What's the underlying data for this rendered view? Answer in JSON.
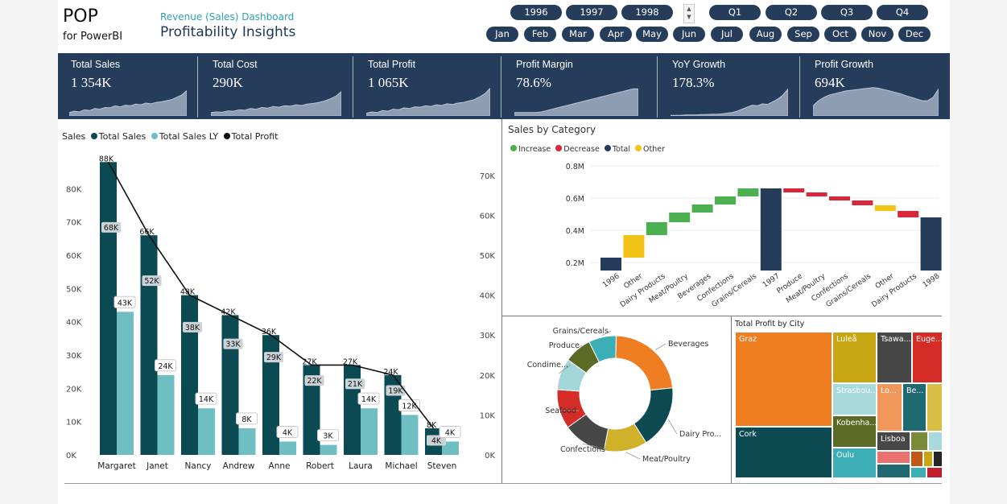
{
  "header": {
    "logo": "POP",
    "logo_sub": "for PowerBI",
    "subtitle": "Revenue (Sales) Dashboard",
    "title": "Profitability Insights"
  },
  "filters": {
    "years": [
      "1996",
      "1997",
      "1998"
    ],
    "quarters": [
      "Q1",
      "Q2",
      "Q3",
      "Q4"
    ],
    "months": [
      "Jan",
      "Feb",
      "Mar",
      "Apr",
      "May",
      "Jun",
      "Jul",
      "Aug",
      "Sep",
      "Oct",
      "Nov",
      "Dec"
    ],
    "spinner_icon": "up-down-arrows-icon"
  },
  "kpis": [
    {
      "label": "Total Sales",
      "value": "1 354K",
      "trend": [
        0.1,
        0.14,
        0.12,
        0.18,
        0.16,
        0.22,
        0.2,
        0.25,
        0.24,
        0.3,
        0.27,
        0.32,
        0.3,
        0.35,
        0.33,
        0.38,
        0.36,
        0.4,
        0.42,
        0.45,
        0.48,
        0.55,
        0.62,
        0.75
      ]
    },
    {
      "label": "Total Cost",
      "value": "290K",
      "trend": [
        0.1,
        0.12,
        0.11,
        0.15,
        0.14,
        0.18,
        0.17,
        0.22,
        0.2,
        0.25,
        0.23,
        0.28,
        0.26,
        0.3,
        0.29,
        0.33,
        0.31,
        0.35,
        0.37,
        0.4,
        0.44,
        0.5,
        0.58,
        0.72
      ]
    },
    {
      "label": "Total Profit",
      "value": "1 065K",
      "trend": [
        0.08,
        0.12,
        0.1,
        0.16,
        0.14,
        0.2,
        0.18,
        0.24,
        0.22,
        0.27,
        0.26,
        0.3,
        0.28,
        0.33,
        0.31,
        0.36,
        0.34,
        0.38,
        0.4,
        0.44,
        0.48,
        0.56,
        0.66,
        0.82
      ]
    },
    {
      "label": "Profit Margin",
      "value": "78.6%",
      "trend": [
        0.1,
        0.1,
        0.1,
        0.1,
        0.1,
        0.12,
        0.16,
        0.2,
        0.24,
        0.28,
        0.32,
        0.36,
        0.4,
        0.44,
        0.48,
        0.52,
        0.56,
        0.6,
        0.64,
        0.68,
        0.72,
        0.76,
        0.8,
        0.8
      ]
    },
    {
      "label": "YoY Growth",
      "value": "178.3%",
      "trend": [
        0.02,
        0.02,
        0.02,
        0.03,
        0.03,
        0.03,
        0.04,
        0.04,
        0.05,
        0.05,
        0.06,
        0.08,
        0.1,
        0.14,
        0.2,
        0.26,
        0.32,
        0.3,
        0.36,
        0.34,
        0.42,
        0.5,
        0.62,
        0.8
      ]
    },
    {
      "label": "Profit Growth",
      "value": "694K",
      "trend": [
        0.3,
        0.45,
        0.55,
        0.62,
        0.66,
        0.7,
        0.74,
        0.76,
        0.78,
        0.8,
        0.82,
        0.84,
        0.82,
        0.78,
        0.74,
        0.7,
        0.66,
        0.6,
        0.55,
        0.5,
        0.45,
        0.45,
        0.55,
        0.8
      ]
    }
  ],
  "sales_legend": {
    "title": "Sales",
    "items": [
      {
        "name": "Total Sales",
        "color": "#0c4a53"
      },
      {
        "name": "Total Sales LY",
        "color": "#6fbfc2"
      },
      {
        "name": "Total Profit",
        "color": "#111111"
      }
    ]
  },
  "chart_data": [
    {
      "type": "bar",
      "title": "Sales",
      "categories": [
        "Margaret",
        "Janet",
        "Nancy",
        "Andrew",
        "Anne",
        "Robert",
        "Laura",
        "Michael",
        "Steven"
      ],
      "series": [
        {
          "name": "Total Sales",
          "color": "#0c4a53",
          "values": [
            88,
            66,
            48,
            42,
            36,
            27,
            27,
            24,
            8
          ],
          "labels": [
            "88K",
            "66K",
            "48K",
            "42K",
            "36K",
            "27K",
            "27K",
            "24K",
            "8K"
          ]
        },
        {
          "name": "Total Sales LY",
          "color": "#6fbfc2",
          "values": [
            43,
            24,
            14,
            8,
            4,
            3,
            14,
            12,
            4
          ],
          "labels": [
            "43K",
            "24K",
            "14K",
            "8K",
            "4K",
            "3K",
            "14K",
            "12K",
            "4K"
          ]
        },
        {
          "name": "Total Profit",
          "color": "#111111",
          "values": [
            68,
            52,
            38,
            33,
            29,
            22,
            21,
            19,
            4
          ],
          "labels": [
            "68K",
            "52K",
            "38K",
            "33K",
            "29K",
            "22K",
            "21K",
            "19K",
            "4K"
          ]
        }
      ],
      "yticks_left": [
        "0K",
        "10K",
        "20K",
        "30K",
        "40K",
        "50K",
        "60K",
        "70K",
        "80K"
      ],
      "yticks_right": [
        "0K",
        "10K",
        "20K",
        "30K",
        "40K",
        "50K",
        "60K",
        "70K"
      ],
      "ylim": [
        0,
        90
      ]
    },
    {
      "type": "bar",
      "title": "Sales by Category",
      "legend": [
        {
          "name": "Increase",
          "color": "#4caf50"
        },
        {
          "name": "Decrease",
          "color": "#d9263a"
        },
        {
          "name": "Total",
          "color": "#253d5b"
        },
        {
          "name": "Other",
          "color": "#f2c418"
        }
      ],
      "categories": [
        "1996",
        "Other",
        "Dairy Products",
        "Meat/Poultry",
        "Beverages",
        "Confections",
        "Grains/Cereals",
        "1997",
        "Produce",
        "Meat/Poultry",
        "Confections",
        "Grains/Cereals",
        "Other",
        "Dairy Products",
        "1998"
      ],
      "steps": [
        {
          "kind": "Total",
          "start": 0,
          "end": 0.23
        },
        {
          "kind": "Other",
          "start": 0.23,
          "end": 0.37
        },
        {
          "kind": "Increase",
          "start": 0.37,
          "end": 0.45
        },
        {
          "kind": "Increase",
          "start": 0.45,
          "end": 0.51
        },
        {
          "kind": "Increase",
          "start": 0.51,
          "end": 0.56
        },
        {
          "kind": "Increase",
          "start": 0.56,
          "end": 0.61
        },
        {
          "kind": "Increase",
          "start": 0.61,
          "end": 0.66
        },
        {
          "kind": "Total",
          "start": 0,
          "end": 0.66
        },
        {
          "kind": "Decrease",
          "start": 0.66,
          "end": 0.635
        },
        {
          "kind": "Decrease",
          "start": 0.635,
          "end": 0.61
        },
        {
          "kind": "Decrease",
          "start": 0.61,
          "end": 0.585
        },
        {
          "kind": "Decrease",
          "start": 0.585,
          "end": 0.555
        },
        {
          "kind": "Other",
          "start": 0.555,
          "end": 0.52
        },
        {
          "kind": "Decrease",
          "start": 0.52,
          "end": 0.48
        },
        {
          "kind": "Total",
          "start": 0,
          "end": 0.48
        }
      ],
      "yticks": [
        "0.2M",
        "0.4M",
        "0.6M",
        "0.8M"
      ],
      "ylim": [
        0.2,
        0.85
      ]
    },
    {
      "type": "pie",
      "slices": [
        {
          "name": "Beverages",
          "value": 21,
          "color": "#ef7d22"
        },
        {
          "name": "Dairy Pro...",
          "value": 16,
          "color": "#0d4a52"
        },
        {
          "name": "Meat/Poultry",
          "value": 11,
          "color": "#d0b12a"
        },
        {
          "name": "Confections",
          "value": 11,
          "color": "#474747"
        },
        {
          "name": "Seafood",
          "value": 10,
          "color": "#d62c27"
        },
        {
          "name": "Condime...",
          "value": 8,
          "color": "#a3d6d9"
        },
        {
          "name": "Produce",
          "value": 7,
          "color": "#5b6a24"
        },
        {
          "name": "Grains/Cereals",
          "value": 7,
          "color": "#3bafb5"
        }
      ]
    },
    {
      "type": "heatmap",
      "title": "Total Profit by City",
      "cells": [
        "Graz",
        "Cork",
        "Luleå",
        "Strasbou...",
        "Kobenha...",
        "Oulu",
        "Tsawa...",
        "Euge...",
        "Lo...",
        "Be...",
        "Lisboa"
      ]
    }
  ]
}
